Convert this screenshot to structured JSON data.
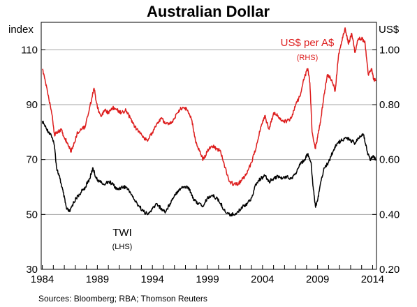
{
  "chart_data": {
    "type": "line",
    "title": "Australian Dollar",
    "left_axis": {
      "unit": "index",
      "ylim": [
        30,
        120
      ],
      "ticks": [
        30,
        50,
        70,
        90,
        110
      ]
    },
    "right_axis": {
      "unit": "US$",
      "ylim": [
        0.2,
        1.1
      ],
      "ticks": [
        "0.20",
        "0.40",
        "0.60",
        "0.80",
        "1.00"
      ]
    },
    "xlim": [
      1983.9,
      2014.35
    ],
    "x_ticks": [
      1984,
      1989,
      1994,
      1999,
      2004,
      2009,
      2014
    ],
    "grid": true,
    "series": [
      {
        "name": "TWI",
        "sublabel": "(LHS)",
        "axis": "left",
        "color": "#000000",
        "points": [
          [
            1984.0,
            84
          ],
          [
            1984.4,
            81
          ],
          [
            1984.8,
            79
          ],
          [
            1985.1,
            75
          ],
          [
            1985.3,
            67
          ],
          [
            1985.6,
            63
          ],
          [
            1985.9,
            58
          ],
          [
            1986.2,
            52
          ],
          [
            1986.5,
            51
          ],
          [
            1986.8,
            54
          ],
          [
            1987.1,
            56
          ],
          [
            1987.5,
            58
          ],
          [
            1987.9,
            60
          ],
          [
            1988.3,
            63
          ],
          [
            1988.6,
            67
          ],
          [
            1988.9,
            63
          ],
          [
            1989.2,
            62
          ],
          [
            1989.6,
            61
          ],
          [
            1990.0,
            62
          ],
          [
            1990.4,
            61
          ],
          [
            1990.8,
            59
          ],
          [
            1991.2,
            60
          ],
          [
            1991.6,
            60
          ],
          [
            1992.0,
            58
          ],
          [
            1992.4,
            55
          ],
          [
            1992.8,
            53
          ],
          [
            1993.2,
            51
          ],
          [
            1993.6,
            50
          ],
          [
            1994.0,
            52
          ],
          [
            1994.4,
            54
          ],
          [
            1994.8,
            52
          ],
          [
            1995.2,
            51
          ],
          [
            1995.6,
            54
          ],
          [
            1996.0,
            57
          ],
          [
            1996.4,
            59
          ],
          [
            1996.8,
            60
          ],
          [
            1997.2,
            60
          ],
          [
            1997.5,
            58
          ],
          [
            1997.8,
            55
          ],
          [
            1998.2,
            54
          ],
          [
            1998.6,
            53
          ],
          [
            1999.0,
            56
          ],
          [
            1999.4,
            57
          ],
          [
            1999.8,
            56
          ],
          [
            2000.2,
            54
          ],
          [
            2000.6,
            51
          ],
          [
            2001.0,
            50
          ],
          [
            2001.4,
            50
          ],
          [
            2001.8,
            51
          ],
          [
            2002.2,
            53
          ],
          [
            2002.6,
            54
          ],
          [
            2003.0,
            56
          ],
          [
            2003.4,
            61
          ],
          [
            2003.8,
            63
          ],
          [
            2004.2,
            64
          ],
          [
            2004.6,
            62
          ],
          [
            2005.0,
            63
          ],
          [
            2005.4,
            64
          ],
          [
            2005.8,
            63
          ],
          [
            2006.2,
            64
          ],
          [
            2006.6,
            63
          ],
          [
            2007.0,
            65
          ],
          [
            2007.4,
            68
          ],
          [
            2007.8,
            70
          ],
          [
            2008.1,
            72
          ],
          [
            2008.4,
            69
          ],
          [
            2008.6,
            60
          ],
          [
            2008.8,
            53
          ],
          [
            2009.0,
            55
          ],
          [
            2009.3,
            62
          ],
          [
            2009.6,
            67
          ],
          [
            2010.0,
            69
          ],
          [
            2010.4,
            73
          ],
          [
            2010.8,
            76
          ],
          [
            2011.2,
            77
          ],
          [
            2011.6,
            78
          ],
          [
            2012.0,
            77
          ],
          [
            2012.4,
            76
          ],
          [
            2012.8,
            78
          ],
          [
            2013.2,
            79
          ],
          [
            2013.5,
            73
          ],
          [
            2013.8,
            70
          ],
          [
            2014.0,
            71
          ],
          [
            2014.3,
            70
          ]
        ]
      },
      {
        "name": "US$ per A$",
        "sublabel": "(RHS)",
        "axis": "right",
        "color": "#dd1d1d",
        "points": [
          [
            1984.0,
            0.93
          ],
          [
            1984.3,
            0.88
          ],
          [
            1984.6,
            0.82
          ],
          [
            1984.9,
            0.76
          ],
          [
            1985.1,
            0.69
          ],
          [
            1985.4,
            0.7
          ],
          [
            1985.7,
            0.71
          ],
          [
            1986.0,
            0.68
          ],
          [
            1986.3,
            0.66
          ],
          [
            1986.6,
            0.63
          ],
          [
            1986.9,
            0.66
          ],
          [
            1987.2,
            0.7
          ],
          [
            1987.6,
            0.71
          ],
          [
            1987.9,
            0.72
          ],
          [
            1988.3,
            0.79
          ],
          [
            1988.7,
            0.86
          ],
          [
            1989.0,
            0.79
          ],
          [
            1989.3,
            0.76
          ],
          [
            1989.7,
            0.78
          ],
          [
            1990.0,
            0.77
          ],
          [
            1990.4,
            0.79
          ],
          [
            1990.8,
            0.78
          ],
          [
            1991.2,
            0.77
          ],
          [
            1991.6,
            0.78
          ],
          [
            1992.0,
            0.75
          ],
          [
            1992.4,
            0.72
          ],
          [
            1992.8,
            0.7
          ],
          [
            1993.2,
            0.68
          ],
          [
            1993.6,
            0.67
          ],
          [
            1994.0,
            0.7
          ],
          [
            1994.4,
            0.73
          ],
          [
            1994.8,
            0.75
          ],
          [
            1995.2,
            0.73
          ],
          [
            1995.6,
            0.73
          ],
          [
            1996.0,
            0.75
          ],
          [
            1996.4,
            0.78
          ],
          [
            1996.8,
            0.79
          ],
          [
            1997.2,
            0.78
          ],
          [
            1997.6,
            0.74
          ],
          [
            1997.9,
            0.67
          ],
          [
            1998.3,
            0.63
          ],
          [
            1998.6,
            0.6
          ],
          [
            1999.0,
            0.63
          ],
          [
            1999.4,
            0.65
          ],
          [
            1999.8,
            0.64
          ],
          [
            2000.2,
            0.63
          ],
          [
            2000.6,
            0.57
          ],
          [
            2001.0,
            0.52
          ],
          [
            2001.4,
            0.51
          ],
          [
            2001.8,
            0.51
          ],
          [
            2002.2,
            0.53
          ],
          [
            2002.6,
            0.55
          ],
          [
            2003.0,
            0.59
          ],
          [
            2003.4,
            0.64
          ],
          [
            2003.8,
            0.71
          ],
          [
            2004.2,
            0.76
          ],
          [
            2004.6,
            0.71
          ],
          [
            2005.0,
            0.77
          ],
          [
            2005.4,
            0.76
          ],
          [
            2005.8,
            0.74
          ],
          [
            2006.2,
            0.74
          ],
          [
            2006.6,
            0.75
          ],
          [
            2007.0,
            0.8
          ],
          [
            2007.4,
            0.83
          ],
          [
            2007.8,
            0.9
          ],
          [
            2008.1,
            0.93
          ],
          [
            2008.3,
            0.88
          ],
          [
            2008.5,
            0.7
          ],
          [
            2008.8,
            0.64
          ],
          [
            2009.0,
            0.68
          ],
          [
            2009.3,
            0.75
          ],
          [
            2009.6,
            0.84
          ],
          [
            2009.9,
            0.91
          ],
          [
            2010.3,
            0.89
          ],
          [
            2010.6,
            0.85
          ],
          [
            2010.9,
            0.98
          ],
          [
            2011.2,
            1.03
          ],
          [
            2011.5,
            1.08
          ],
          [
            2011.8,
            1.02
          ],
          [
            2012.1,
            1.06
          ],
          [
            2012.4,
            0.99
          ],
          [
            2012.7,
            1.04
          ],
          [
            2013.0,
            1.04
          ],
          [
            2013.3,
            1.03
          ],
          [
            2013.6,
            0.91
          ],
          [
            2013.9,
            0.93
          ],
          [
            2014.1,
            0.89
          ],
          [
            2014.3,
            0.89
          ]
        ]
      }
    ]
  },
  "source_note": "Sources:  Bloomberg; RBA; Thomson Reuters"
}
